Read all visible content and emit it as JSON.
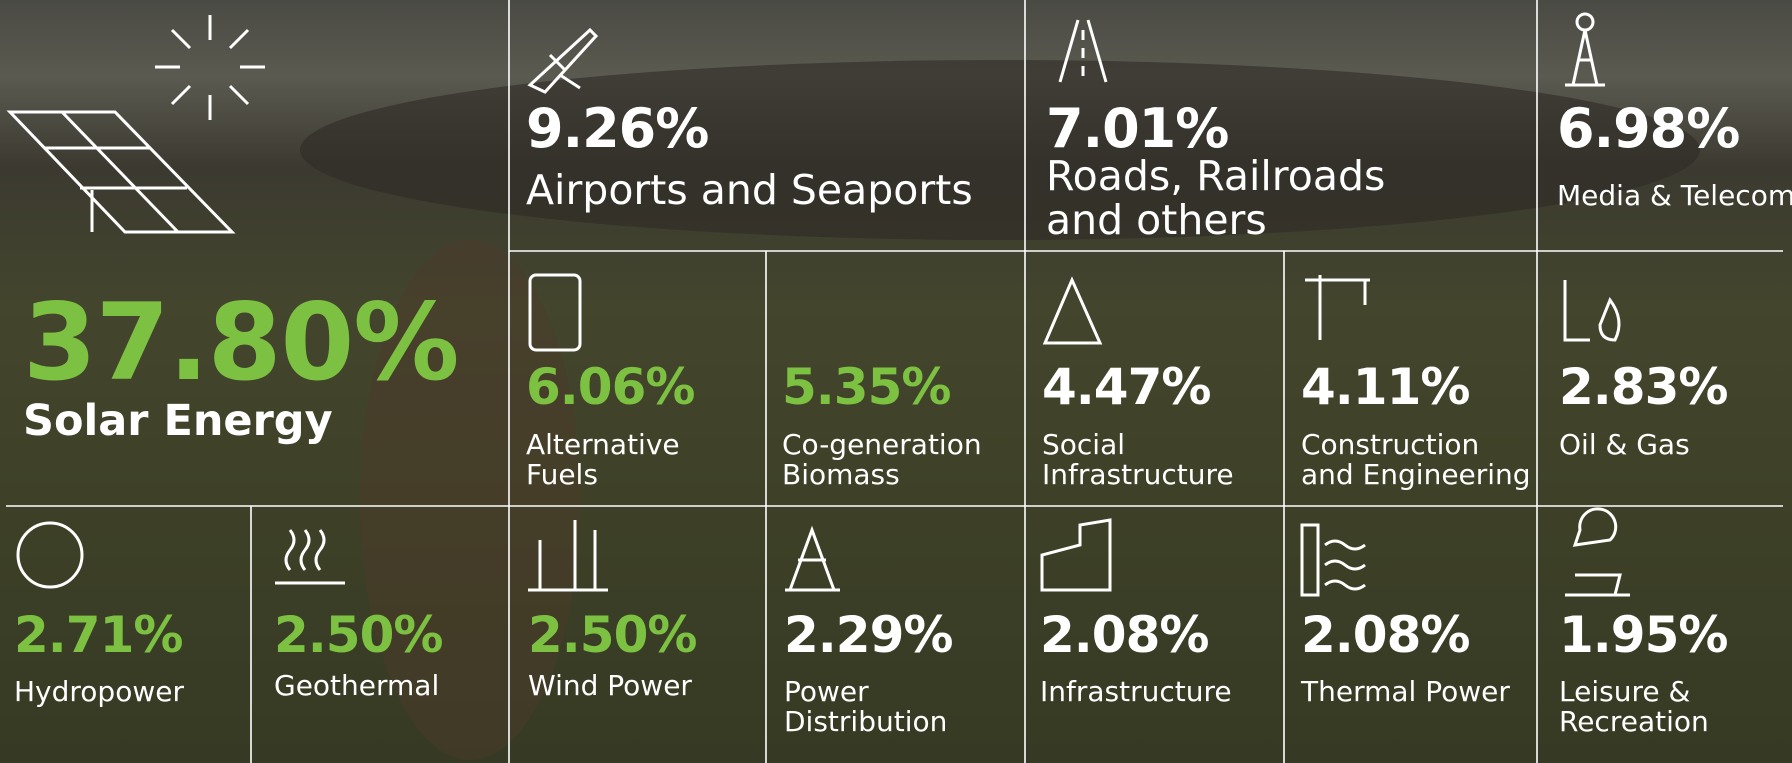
{
  "tiles": [
    {
      "value": "37.80%",
      "label": [
        "Solar Energy"
      ]
    },
    {
      "value": "9.26%",
      "label": [
        "Airports and Seaports"
      ]
    },
    {
      "value": "7.01%",
      "label": [
        "Roads, Railroads",
        "and others"
      ]
    },
    {
      "value": "6.98%",
      "label": [
        "Media & Telecom"
      ]
    },
    {
      "value": "6.06%",
      "label": [
        "Alternative",
        "Fuels"
      ]
    },
    {
      "value": "5.35%",
      "label": [
        "Co-generation",
        "Biomass"
      ]
    },
    {
      "value": "4.47%",
      "label": [
        "Social",
        "Infrastructure"
      ]
    },
    {
      "value": "4.11%",
      "label": [
        "Construction",
        "and Engineering"
      ]
    },
    {
      "value": "2.83%",
      "label": [
        "Oil & Gas"
      ]
    },
    {
      "value": "2.71%",
      "label": [
        "Hydropower"
      ]
    },
    {
      "value": "2.50%",
      "label": [
        "Geothermal"
      ]
    },
    {
      "value": "2.50%",
      "label": [
        "Wind Power"
      ]
    },
    {
      "value": "2.29%",
      "label": [
        "Power",
        "Distribution"
      ]
    },
    {
      "value": "2.08%",
      "label": [
        "Infrastructure"
      ]
    },
    {
      "value": "2.08%",
      "label": [
        "Thermal Power"
      ]
    },
    {
      "value": "1.95%",
      "label": [
        "Leisure &",
        "Recreation"
      ]
    }
  ]
}
